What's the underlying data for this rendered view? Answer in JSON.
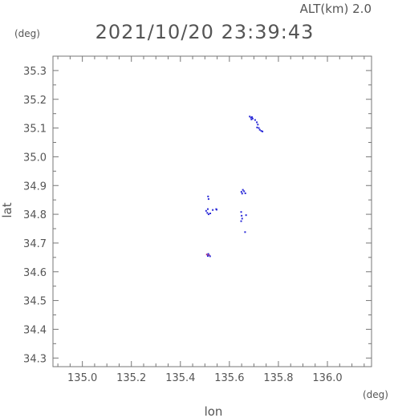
{
  "chart_data": {
    "type": "scatter",
    "title": "2021/10/20 23:39:43",
    "altitude_label": "ALT(km) 2.0",
    "xlabel": "lon",
    "ylabel": "lat",
    "x_unit": "(deg)",
    "y_unit": "(deg)",
    "xlim": [
      134.88,
      136.18
    ],
    "ylim": [
      34.27,
      35.35
    ],
    "x_ticks": [
      135.0,
      135.2,
      135.4,
      135.6,
      135.8,
      136.0
    ],
    "x_tick_labels": [
      "135.0",
      "135.2",
      "135.4",
      "135.6",
      "135.8",
      "136.0"
    ],
    "y_ticks": [
      34.3,
      34.4,
      34.5,
      34.6,
      34.7,
      34.8,
      34.9,
      35.0,
      35.1,
      35.2,
      35.3
    ],
    "y_tick_labels": [
      "34.3",
      "34.4",
      "34.5",
      "34.6",
      "34.7",
      "34.8",
      "34.9",
      "35.0",
      "35.1",
      "35.2",
      "35.3"
    ],
    "grid": false,
    "point_colors": [
      "#2a2ad8",
      "#b03080"
    ],
    "points": [
      {
        "lon": 135.683,
        "lat": 35.14,
        "c": 0
      },
      {
        "lon": 135.688,
        "lat": 35.136,
        "c": 0
      },
      {
        "lon": 135.692,
        "lat": 35.138,
        "c": 0
      },
      {
        "lon": 135.69,
        "lat": 35.13,
        "c": 0
      },
      {
        "lon": 135.695,
        "lat": 35.133,
        "c": 0
      },
      {
        "lon": 135.705,
        "lat": 35.128,
        "c": 0
      },
      {
        "lon": 135.712,
        "lat": 35.12,
        "c": 0
      },
      {
        "lon": 135.716,
        "lat": 35.112,
        "c": 0
      },
      {
        "lon": 135.713,
        "lat": 35.102,
        "c": 0
      },
      {
        "lon": 135.72,
        "lat": 35.1,
        "c": 0
      },
      {
        "lon": 135.724,
        "lat": 35.094,
        "c": 0
      },
      {
        "lon": 135.73,
        "lat": 35.09,
        "c": 0
      },
      {
        "lon": 135.735,
        "lat": 35.088,
        "c": 0
      },
      {
        "lon": 135.649,
        "lat": 34.878,
        "c": 0
      },
      {
        "lon": 135.655,
        "lat": 34.885,
        "c": 0
      },
      {
        "lon": 135.66,
        "lat": 34.88,
        "c": 0
      },
      {
        "lon": 135.665,
        "lat": 34.873,
        "c": 0
      },
      {
        "lon": 135.652,
        "lat": 34.872,
        "c": 0
      },
      {
        "lon": 135.513,
        "lat": 34.862,
        "c": 0
      },
      {
        "lon": 135.515,
        "lat": 34.853,
        "c": 0
      },
      {
        "lon": 135.505,
        "lat": 34.812,
        "c": 0
      },
      {
        "lon": 135.51,
        "lat": 34.805,
        "c": 0
      },
      {
        "lon": 135.515,
        "lat": 34.8,
        "c": 0
      },
      {
        "lon": 135.512,
        "lat": 34.818,
        "c": 0
      },
      {
        "lon": 135.522,
        "lat": 34.803,
        "c": 0
      },
      {
        "lon": 135.532,
        "lat": 34.815,
        "c": 0
      },
      {
        "lon": 135.546,
        "lat": 34.818,
        "c": 0
      },
      {
        "lon": 135.548,
        "lat": 34.816,
        "c": 0
      },
      {
        "lon": 135.648,
        "lat": 34.808,
        "c": 0
      },
      {
        "lon": 135.65,
        "lat": 34.795,
        "c": 0
      },
      {
        "lon": 135.652,
        "lat": 34.785,
        "c": 0
      },
      {
        "lon": 135.648,
        "lat": 34.776,
        "c": 0
      },
      {
        "lon": 135.668,
        "lat": 34.797,
        "c": 0
      },
      {
        "lon": 135.664,
        "lat": 34.738,
        "c": 0
      },
      {
        "lon": 135.508,
        "lat": 34.66,
        "c": 1
      },
      {
        "lon": 135.512,
        "lat": 34.655,
        "c": 0
      },
      {
        "lon": 135.517,
        "lat": 34.658,
        "c": 1
      },
      {
        "lon": 135.521,
        "lat": 34.654,
        "c": 0
      },
      {
        "lon": 135.514,
        "lat": 34.662,
        "c": 0
      }
    ]
  }
}
